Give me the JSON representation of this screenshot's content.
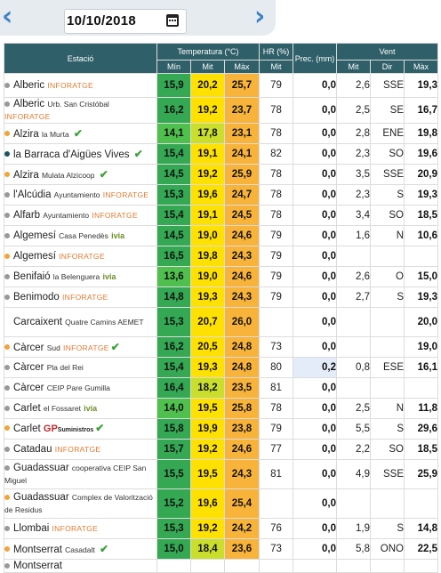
{
  "header": {
    "date": "10/10/2018"
  },
  "table": {
    "col_estacio": "Estació",
    "col_temp": "Temperatura (°C)",
    "col_hr": "HR (%)",
    "col_prec": "Prec. (mm)",
    "col_vent": "Vent",
    "sub_temp": [
      "Mín",
      "Mit",
      "Màx"
    ],
    "sub_hr": "Mit",
    "sub_vent": [
      "Mit",
      "Dir",
      "Màx"
    ]
  },
  "rows": [
    {
      "name": "Alberic",
      "sub": "",
      "brand": "INFORATGE",
      "gp": "",
      "check": false,
      "ivia": false,
      "dot": "grey",
      "min": "15,9",
      "mit": "20,2",
      "max": "25,7",
      "hr": "79",
      "prec": "0,0",
      "vmit": "2,6",
      "dir": "SSE",
      "vmax": "19,3"
    },
    {
      "name": "Alberic",
      "sub": "Urb. San Cristóbal",
      "brand": "INFORATGE",
      "gp": "",
      "check": false,
      "ivia": false,
      "dot": "grey",
      "min": "16,2",
      "mit": "19,2",
      "max": "23,7",
      "hr": "78",
      "prec": "0,0",
      "vmit": "2,5",
      "dir": "SE",
      "vmax": "16,7"
    },
    {
      "name": "Alzira",
      "sub": "la Murta",
      "brand": "",
      "gp": "",
      "check": true,
      "ivia": false,
      "dot": "orange",
      "min": "14,1",
      "mit": "17,8",
      "max": "23,1",
      "hr": "78",
      "prec": "0,0",
      "vmit": "2,8",
      "dir": "ENE",
      "vmax": "19,8"
    },
    {
      "name": "la Barraca d'Aigües Vives",
      "sub": "",
      "brand": "",
      "gp": "",
      "check": true,
      "ivia": false,
      "dot": "dark",
      "min": "15,4",
      "mit": "19,1",
      "max": "24,1",
      "hr": "82",
      "prec": "0,0",
      "vmit": "2,3",
      "dir": "SO",
      "vmax": "19,6"
    },
    {
      "name": "Alzira",
      "sub": "Mulata Alzicoop",
      "brand": "",
      "gp": "",
      "check": true,
      "ivia": false,
      "dot": "orange",
      "min": "14,5",
      "mit": "19,2",
      "max": "25,9",
      "hr": "78",
      "prec": "0,0",
      "vmit": "3,5",
      "dir": "SSE",
      "vmax": "20,9"
    },
    {
      "name": "l'Alcúdia",
      "sub": "Ayuntamiento",
      "brand": "INFORATGE",
      "gp": "",
      "check": false,
      "ivia": false,
      "dot": "grey",
      "min": "15,3",
      "mit": "19,6",
      "max": "24,7",
      "hr": "78",
      "prec": "0,0",
      "vmit": "2,3",
      "dir": "S",
      "vmax": "19,3"
    },
    {
      "name": "Alfarb",
      "sub": "Ayuntamiento",
      "brand": "INFORATGE",
      "gp": "",
      "check": false,
      "ivia": false,
      "dot": "grey",
      "min": "15,4",
      "mit": "19,1",
      "max": "24,5",
      "hr": "78",
      "prec": "0,0",
      "vmit": "3,4",
      "dir": "SO",
      "vmax": "18,5"
    },
    {
      "name": "Algemesí",
      "sub": "Casa Penedès",
      "brand": "",
      "gp": "",
      "check": false,
      "ivia": true,
      "dot": "grey",
      "min": "14,5",
      "mit": "19,0",
      "max": "24,6",
      "hr": "79",
      "prec": "0,0",
      "vmit": "1,6",
      "dir": "N",
      "vmax": "10,6"
    },
    {
      "name": "Algemesí",
      "sub": "",
      "brand": "INFORATGE",
      "gp": "",
      "check": false,
      "ivia": false,
      "dot": "orange",
      "min": "16,5",
      "mit": "19,8",
      "max": "24,3",
      "hr": "79",
      "prec": "0,0",
      "vmit": "",
      "dir": "",
      "vmax": ""
    },
    {
      "name": "Benifaió",
      "sub": "la Belenguera",
      "brand": "",
      "gp": "",
      "check": false,
      "ivia": true,
      "dot": "grey",
      "min": "13,6",
      "mit": "19,0",
      "max": "24,6",
      "hr": "79",
      "prec": "0,0",
      "vmit": "2,6",
      "dir": "O",
      "vmax": "15,0"
    },
    {
      "name": "Benimodo",
      "sub": "",
      "brand": "INFORATGE",
      "gp": "",
      "check": false,
      "ivia": false,
      "dot": "grey",
      "min": "14,8",
      "mit": "19,3",
      "max": "24,3",
      "hr": "79",
      "prec": "0,0",
      "vmit": "2,7",
      "dir": "S",
      "vmax": "19,3"
    },
    {
      "name": "Carcaixent",
      "sub": "Quatre Camins AEMET",
      "brand": "",
      "gp": "",
      "check": false,
      "ivia": false,
      "dot": "none",
      "min": "15,3",
      "mit": "20,7",
      "max": "26,0",
      "hr": "",
      "prec": "0,0",
      "vmit": "",
      "dir": "",
      "vmax": "20,0"
    },
    {
      "name": "Càrcer",
      "sub": "Sud",
      "brand": "INFORATGE",
      "gp": "",
      "check": true,
      "ivia": false,
      "dot": "orange",
      "min": "16,2",
      "mit": "20,5",
      "max": "24,8",
      "hr": "73",
      "prec": "0,0",
      "vmit": "",
      "dir": "",
      "vmax": "19,0"
    },
    {
      "name": "Càrcer",
      "sub": "Pla del Rei",
      "brand": "",
      "gp": "",
      "check": false,
      "ivia": false,
      "dot": "grey",
      "min": "15,4",
      "mit": "19,3",
      "max": "24,8",
      "hr": "80",
      "prec": "0,2",
      "vmit": "0,8",
      "dir": "ESE",
      "vmax": "16,1"
    },
    {
      "name": "Càrcer",
      "sub": "CEIP Pare Gumilla",
      "brand": "",
      "gp": "",
      "check": false,
      "ivia": false,
      "dot": "grey",
      "min": "16,4",
      "mit": "18,2",
      "max": "23,5",
      "hr": "81",
      "prec": "0,0",
      "vmit": "",
      "dir": "",
      "vmax": ""
    },
    {
      "name": "Carlet",
      "sub": "el Fossaret",
      "brand": "",
      "gp": "",
      "check": false,
      "ivia": true,
      "dot": "grey",
      "min": "14,0",
      "mit": "19,5",
      "max": "25,8",
      "hr": "78",
      "prec": "0,0",
      "vmit": "2,5",
      "dir": "N",
      "vmax": "11,8"
    },
    {
      "name": "Carlet",
      "sub": "",
      "brand": "",
      "gp": "GP",
      "check": true,
      "ivia": false,
      "dot": "orange",
      "min": "15,8",
      "mit": "19,9",
      "max": "23,8",
      "hr": "79",
      "prec": "0,0",
      "vmit": "5,5",
      "dir": "S",
      "vmax": "29,6"
    },
    {
      "name": "Catadau",
      "sub": "",
      "brand": "INFORATGE",
      "gp": "",
      "check": false,
      "ivia": false,
      "dot": "grey",
      "min": "15,7",
      "mit": "19,2",
      "max": "24,6",
      "hr": "77",
      "prec": "0,0",
      "vmit": "2,2",
      "dir": "SO",
      "vmax": "18,5"
    },
    {
      "name": "Guadassuar",
      "sub": "cooperativa CEIP San Miguel",
      "brand": "",
      "gp": "",
      "check": false,
      "ivia": false,
      "dot": "grey",
      "min": "15,5",
      "mit": "19,5",
      "max": "24,3",
      "hr": "81",
      "prec": "0,0",
      "vmit": "4,9",
      "dir": "SSE",
      "vmax": "25,9"
    },
    {
      "name": "Guadassuar",
      "sub": "Complex de Valorització de Residus",
      "brand": "",
      "gp": "",
      "check": false,
      "ivia": false,
      "dot": "orange",
      "min": "15,2",
      "mit": "19,6",
      "max": "25,4",
      "hr": "",
      "prec": "0,0",
      "vmit": "",
      "dir": "",
      "vmax": ""
    },
    {
      "name": "Llombai",
      "sub": "",
      "brand": "INFORATGE",
      "gp": "",
      "check": false,
      "ivia": false,
      "dot": "grey",
      "min": "15,3",
      "mit": "19,2",
      "max": "24,2",
      "hr": "76",
      "prec": "0,0",
      "vmit": "1,9",
      "dir": "S",
      "vmax": "14,8"
    },
    {
      "name": "Montserrat",
      "sub": "Casadalt",
      "brand": "",
      "gp": "",
      "check": true,
      "ivia": false,
      "dot": "orange",
      "min": "15,0",
      "mit": "18,4",
      "max": "23,6",
      "hr": "73",
      "prec": "0,0",
      "vmit": "5,8",
      "dir": "ONO",
      "vmax": "22,5"
    },
    {
      "name": "Montserrat",
      "sub": "",
      "brand": "",
      "gp": "",
      "check": false,
      "ivia": false,
      "dot": "grey",
      "min": "",
      "mit": "",
      "max": "",
      "hr": "",
      "prec": "",
      "vmit": "",
      "dir": "",
      "vmax": ""
    }
  ],
  "icons": {
    "prev": "chevron-left-icon",
    "next": "chevron-right-icon",
    "calendar": "calendar-icon",
    "check": "checkmark-icon"
  },
  "colors": {
    "header_bg": "#2f5f68",
    "min_green": "#34a853",
    "mit_yellow": "#ffe100",
    "max_orange": "#f7b33a",
    "check_green": "#3aa335",
    "arrow_blue": "#3b82c6"
  }
}
